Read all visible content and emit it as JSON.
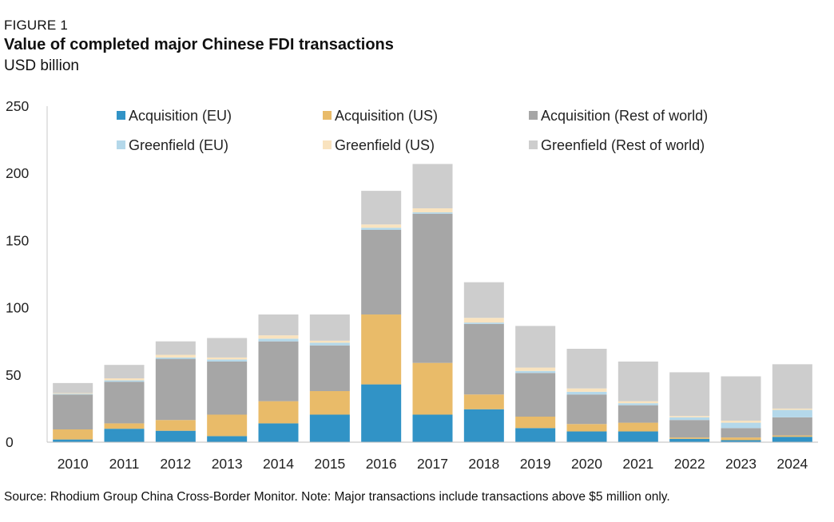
{
  "figure_label": "FIGURE 1",
  "title": "Value of completed major Chinese FDI transactions",
  "subtitle": "USD billion",
  "source_note": "Source: Rhodium Group China Cross-Border Monitor. Note: Major transactions include transactions above $5 million only.",
  "chart_data": {
    "type": "bar",
    "stacked": true,
    "title": "Value of completed major Chinese FDI transactions",
    "ylabel": "USD billion",
    "xlabel": "",
    "ylim": [
      0,
      250
    ],
    "yticks": [
      0,
      50,
      100,
      150,
      200,
      250
    ],
    "grid": false,
    "legend_position": "top",
    "categories": [
      "2010",
      "2011",
      "2012",
      "2013",
      "2014",
      "2015",
      "2016",
      "2017",
      "2018",
      "2019",
      "2020",
      "2021",
      "2022",
      "2023",
      "2024"
    ],
    "series": [
      {
        "name": "Acquisition (EU)",
        "color": "#3193c6",
        "values": [
          2,
          10,
          8.5,
          4.5,
          14,
          20.5,
          43,
          20.5,
          24.5,
          10.5,
          8,
          8,
          2.5,
          1.5,
          4
        ]
      },
      {
        "name": "Acquisition (US)",
        "color": "#e9bb69",
        "values": [
          7.5,
          4,
          8,
          16,
          16.5,
          17.5,
          52,
          38.5,
          11,
          8.5,
          5.5,
          6.5,
          1,
          2,
          1
        ]
      },
      {
        "name": "Acquisition (Rest of world)",
        "color": "#a6a6a6",
        "values": [
          26,
          31,
          45.5,
          39.5,
          44.5,
          34,
          63,
          111,
          52.5,
          32.5,
          22,
          13,
          13,
          7,
          13.5
        ]
      },
      {
        "name": "Greenfield (EU)",
        "color": "#b4d8ea",
        "values": [
          0.5,
          1,
          1,
          1.5,
          2,
          2,
          1.5,
          1,
          1,
          1.5,
          2,
          1.5,
          2,
          4,
          5.5
        ]
      },
      {
        "name": "Greenfield (US)",
        "color": "#f9e3bf",
        "values": [
          0.5,
          1.5,
          2,
          1.5,
          2.5,
          1.5,
          2.5,
          3,
          3.5,
          2.5,
          2.5,
          1.5,
          1,
          1.5,
          1
        ]
      },
      {
        "name": "Greenfield (Rest of world)",
        "color": "#cdcdcd",
        "values": [
          7.5,
          10,
          10,
          14.5,
          15.5,
          19.5,
          25,
          33,
          26.5,
          31,
          29.5,
          29.5,
          32.5,
          33,
          33
        ]
      }
    ]
  }
}
